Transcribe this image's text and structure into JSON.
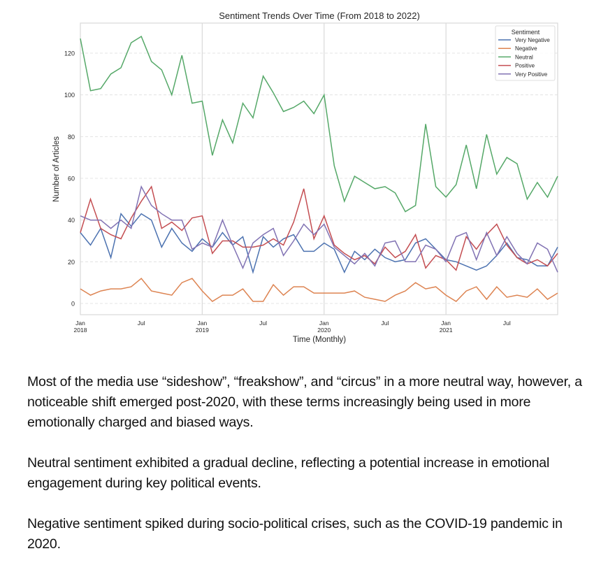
{
  "chart_data": {
    "type": "line",
    "title": "Sentiment Trends Over Time (From 2018 to 2022)",
    "xlabel": "Time (Monthly)",
    "ylabel": "Number of Articles",
    "ylim": [
      -5,
      135
    ],
    "yticks": [
      0,
      20,
      40,
      60,
      80,
      100,
      120
    ],
    "grid": "horizontal dashed, vertical at year boundaries",
    "x_start": "2018-01",
    "x_frequency": "monthly",
    "x_count": 48,
    "xticks": [
      {
        "month_index": 0,
        "label": "Jan",
        "sublabel": "2018"
      },
      {
        "month_index": 6,
        "label": "Jul",
        "sublabel": ""
      },
      {
        "month_index": 12,
        "label": "Jan",
        "sublabel": "2019"
      },
      {
        "month_index": 18,
        "label": "Jul",
        "sublabel": ""
      },
      {
        "month_index": 24,
        "label": "Jan",
        "sublabel": "2020"
      },
      {
        "month_index": 30,
        "label": "Jul",
        "sublabel": ""
      },
      {
        "month_index": 36,
        "label": "Jan",
        "sublabel": "2021"
      },
      {
        "month_index": 42,
        "label": "Jul",
        "sublabel": ""
      }
    ],
    "legend": {
      "title": "Sentiment",
      "placement": "top-right"
    },
    "series": [
      {
        "name": "Very Negative",
        "color": "#4c72b0",
        "values": [
          34,
          28,
          36,
          22,
          43,
          37,
          43,
          40,
          27,
          36,
          29,
          25,
          31,
          27,
          34,
          28,
          32,
          15,
          32,
          27,
          31,
          33,
          25,
          25,
          29,
          26,
          15,
          25,
          21,
          26,
          22,
          20,
          21,
          29,
          31,
          26,
          21,
          20,
          18,
          16,
          18,
          23,
          29,
          22,
          21,
          18,
          18,
          27
        ]
      },
      {
        "name": "Negative",
        "color": "#dd8452",
        "values": [
          7,
          4,
          6,
          7,
          7,
          8,
          12,
          6,
          5,
          4,
          10,
          12,
          6,
          1,
          4,
          4,
          7,
          1,
          1,
          9,
          4,
          8,
          8,
          5,
          5,
          5,
          5,
          6,
          3,
          2,
          1,
          4,
          6,
          10,
          7,
          8,
          4,
          1,
          6,
          8,
          2,
          8,
          3,
          4,
          3,
          7,
          2,
          5
        ]
      },
      {
        "name": "Neutral",
        "color": "#55a868",
        "values": [
          127,
          102,
          103,
          110,
          113,
          125,
          128,
          116,
          112,
          100,
          119,
          96,
          97,
          71,
          88,
          77,
          96,
          89,
          109,
          101,
          92,
          94,
          97,
          91,
          100,
          66,
          49,
          61,
          58,
          55,
          56,
          53,
          44,
          47,
          86,
          56,
          51,
          57,
          76,
          55,
          81,
          62,
          70,
          67,
          50,
          58,
          51,
          61
        ]
      },
      {
        "name": "Positive",
        "color": "#c44e52",
        "values": [
          34,
          50,
          36,
          33,
          31,
          41,
          49,
          56,
          36,
          39,
          35,
          41,
          42,
          24,
          30,
          30,
          27,
          27,
          28,
          31,
          28,
          39,
          55,
          31,
          42,
          28,
          24,
          21,
          23,
          19,
          27,
          22,
          25,
          33,
          17,
          23,
          21,
          16,
          32,
          26,
          33,
          38,
          28,
          22,
          19,
          21,
          18,
          24
        ]
      },
      {
        "name": "Very Positive",
        "color": "#8172b3",
        "values": [
          42,
          40,
          40,
          36,
          40,
          36,
          56,
          47,
          43,
          40,
          40,
          26,
          29,
          27,
          40,
          28,
          17,
          29,
          33,
          36,
          23,
          30,
          38,
          33,
          38,
          27,
          23,
          19,
          24,
          18,
          29,
          30,
          20,
          20,
          28,
          26,
          20,
          32,
          34,
          21,
          34,
          23,
          32,
          24,
          19,
          29,
          26,
          15
        ]
      }
    ]
  },
  "notes": [
    "Most of the media use “sideshow”, “freakshow”, and “circus” in a more neutral way, however, a noticeable shift emerged post-2020, with these terms increasingly being used in more emotionally charged and biased ways.",
    "Neutral sentiment exhibited a gradual decline, reflecting a potential increase in emotional engagement during key political events.",
    "Negative sentiment spiked during socio-political crises, such as the COVID-19 pandemic in 2020."
  ]
}
